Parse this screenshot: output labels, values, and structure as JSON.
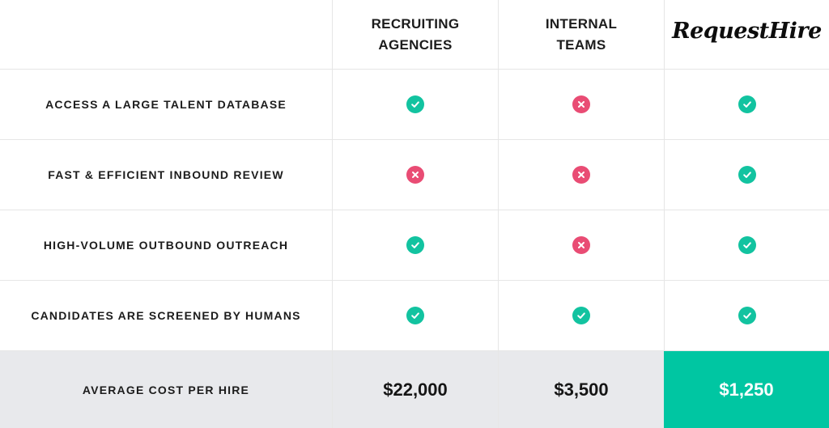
{
  "header": {
    "col_agencies": "RECRUITING\nAGENCIES",
    "col_internal": "INTERNAL\nTEAMS",
    "col_brand": "RequestHire"
  },
  "rows": [
    {
      "feature": "ACCESS A LARGE TALENT DATABASE",
      "agencies": "check-icon",
      "internal": "cross-icon",
      "brand": "check-icon"
    },
    {
      "feature": "FAST & EFFICIENT INBOUND REVIEW",
      "agencies": "cross-icon",
      "internal": "cross-icon",
      "brand": "check-icon"
    },
    {
      "feature": "HIGH-VOLUME OUTBOUND OUTREACH",
      "agencies": "check-icon",
      "internal": "cross-icon",
      "brand": "check-icon"
    },
    {
      "feature": "CANDIDATES ARE SCREENED BY HUMANS",
      "agencies": "check-icon",
      "internal": "check-icon",
      "brand": "check-icon"
    }
  ],
  "cost": {
    "label": "AVERAGE COST PER HIRE",
    "agencies": "$22,000",
    "internal": "$3,500",
    "brand": "$1,250"
  },
  "colors": {
    "check": "#12c3a0",
    "cross": "#e94c74",
    "highlight": "#00c6a2",
    "cost_row_bg": "#e8e9ec"
  }
}
